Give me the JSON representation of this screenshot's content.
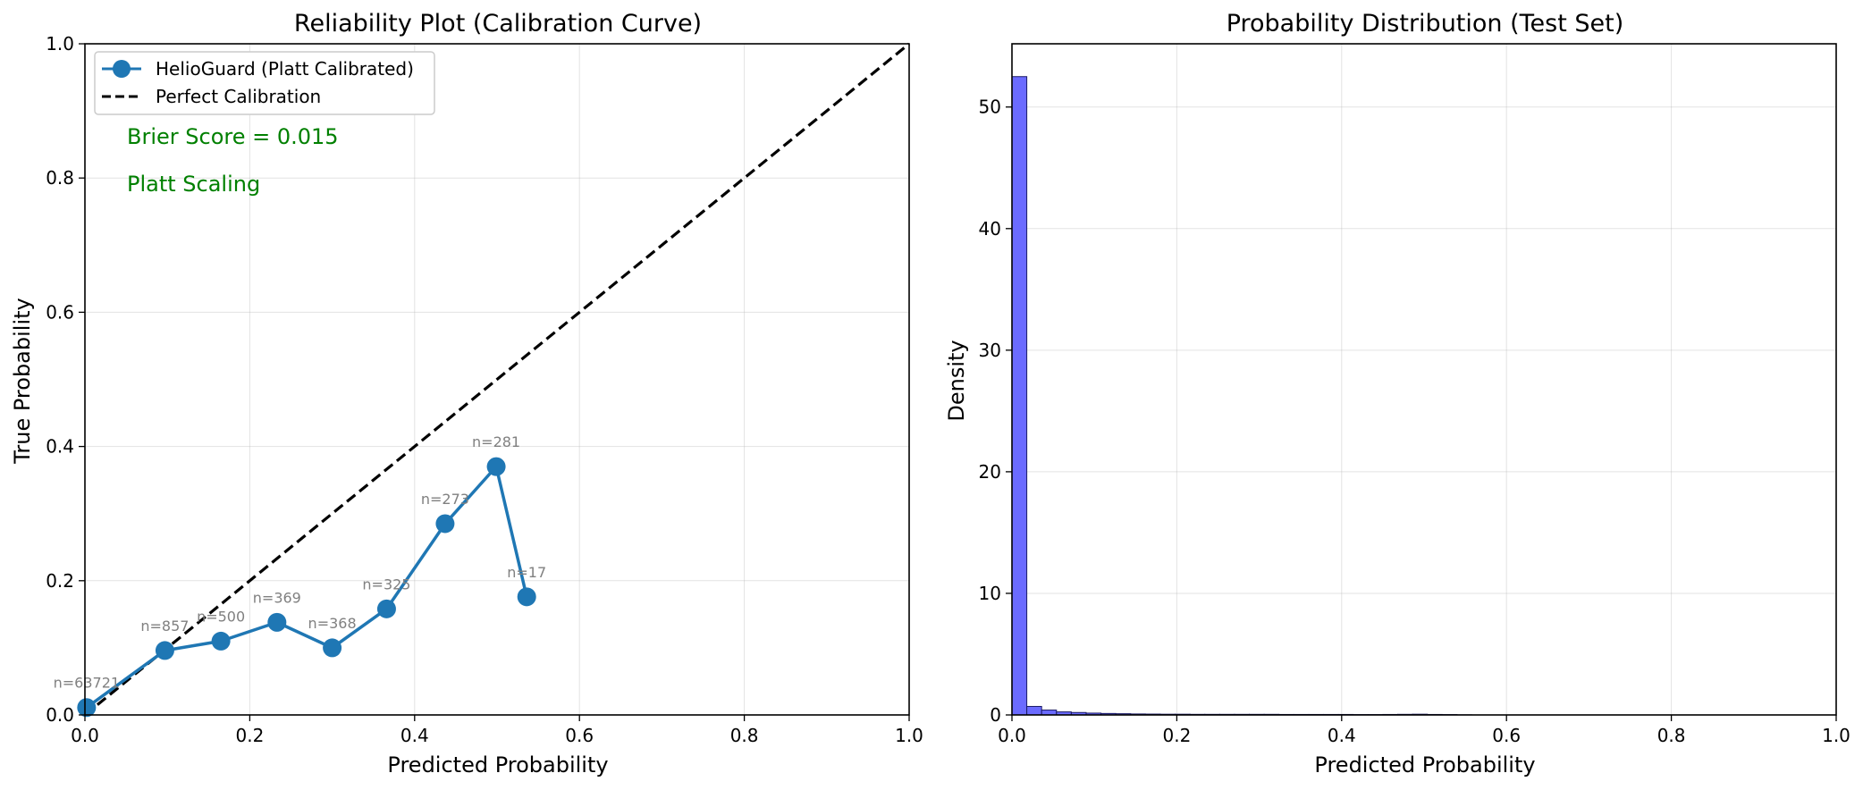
{
  "chart_data": [
    {
      "type": "line",
      "title": "Reliability Plot (Calibration Curve)",
      "xlabel": "Predicted Probability",
      "ylabel": "True Probability",
      "xlim": [
        0,
        1
      ],
      "ylim": [
        0,
        1
      ],
      "xticks": [
        "0.0",
        "0.2",
        "0.4",
        "0.6",
        "0.8",
        "1.0"
      ],
      "yticks": [
        "0.0",
        "0.2",
        "0.4",
        "0.6",
        "0.8",
        "1.0"
      ],
      "grid": true,
      "legend_position": "upper-left",
      "series": [
        {
          "name": "HelioGuard (Platt Calibrated)",
          "color": "#1f77b4",
          "marker": "circle",
          "x": [
            0.002,
            0.097,
            0.165,
            0.233,
            0.3,
            0.366,
            0.437,
            0.499,
            0.536
          ],
          "y": [
            0.011,
            0.096,
            0.11,
            0.138,
            0.1,
            0.158,
            0.285,
            0.37,
            0.176
          ],
          "point_labels": [
            "n=63721",
            "n=857",
            "n=500",
            "n=369",
            "n=368",
            "n=325",
            "n=273",
            "n=281",
            "n=17"
          ]
        },
        {
          "name": "Perfect Calibration",
          "color": "#000000",
          "style": "dashed",
          "x": [
            0,
            1
          ],
          "y": [
            0,
            1
          ]
        }
      ],
      "annotations": [
        {
          "text": "Brier Score = 0.015",
          "color": "#008000"
        },
        {
          "text": "Platt Scaling",
          "color": "#008000"
        }
      ]
    },
    {
      "type": "bar",
      "subtype": "histogram",
      "title": "Probability Distribution (Test Set)",
      "xlabel": "Predicted Probability",
      "ylabel": "Density",
      "xlim": [
        0,
        1
      ],
      "ylim": [
        0,
        55.2
      ],
      "xticks": [
        "0.0",
        "0.2",
        "0.4",
        "0.6",
        "0.8",
        "1.0"
      ],
      "yticks": [
        "0",
        "10",
        "20",
        "30",
        "40",
        "50"
      ],
      "grid": true,
      "bar_color": "#6b6bff",
      "edge_color": "#1a1a66",
      "bin_width": 0.018,
      "bins": [
        {
          "x": 0.0,
          "density": 52.5
        },
        {
          "x": 0.018,
          "density": 0.7
        },
        {
          "x": 0.036,
          "density": 0.4
        },
        {
          "x": 0.054,
          "density": 0.25
        },
        {
          "x": 0.072,
          "density": 0.2
        },
        {
          "x": 0.09,
          "density": 0.15
        },
        {
          "x": 0.108,
          "density": 0.12
        },
        {
          "x": 0.126,
          "density": 0.1
        },
        {
          "x": 0.144,
          "density": 0.08
        },
        {
          "x": 0.162,
          "density": 0.07
        },
        {
          "x": 0.18,
          "density": 0.06
        },
        {
          "x": 0.198,
          "density": 0.06
        },
        {
          "x": 0.216,
          "density": 0.05
        },
        {
          "x": 0.234,
          "density": 0.05
        },
        {
          "x": 0.252,
          "density": 0.05
        },
        {
          "x": 0.27,
          "density": 0.05
        },
        {
          "x": 0.288,
          "density": 0.05
        },
        {
          "x": 0.306,
          "density": 0.05
        },
        {
          "x": 0.324,
          "density": 0.04
        },
        {
          "x": 0.342,
          "density": 0.04
        },
        {
          "x": 0.36,
          "density": 0.04
        },
        {
          "x": 0.378,
          "density": 0.04
        },
        {
          "x": 0.396,
          "density": 0.04
        },
        {
          "x": 0.414,
          "density": 0.03
        },
        {
          "x": 0.432,
          "density": 0.03
        },
        {
          "x": 0.45,
          "density": 0.04
        },
        {
          "x": 0.468,
          "density": 0.05
        },
        {
          "x": 0.486,
          "density": 0.06
        },
        {
          "x": 0.504,
          "density": 0.04
        },
        {
          "x": 0.522,
          "density": 0.03
        },
        {
          "x": 0.54,
          "density": 0.01
        }
      ]
    }
  ]
}
